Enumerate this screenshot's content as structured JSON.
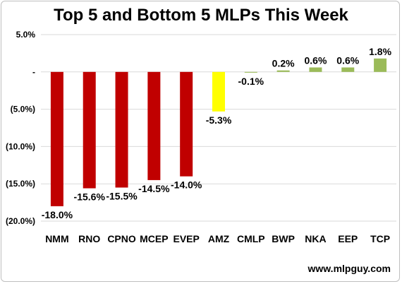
{
  "title": "Top 5 and Bottom 5 MLPs This Week",
  "source": "www.mlpguy.com",
  "chart_data": {
    "type": "bar",
    "title": "Top 5 and Bottom 5 MLPs This Week",
    "categories": [
      "NMM",
      "RNO",
      "CPNO",
      "MCEP",
      "EVEP",
      "AMZ",
      "CMLP",
      "BWP",
      "NKA",
      "EEP",
      "TCP"
    ],
    "values": [
      -18.0,
      -15.6,
      -15.5,
      -14.5,
      -14.0,
      -5.3,
      -0.1,
      0.2,
      0.6,
      0.6,
      1.8
    ],
    "data_labels": [
      "-18.0%",
      "-15.6%",
      "-15.5%",
      "-14.5%",
      "-14.0%",
      "-5.3%",
      "-0.1%",
      "0.2%",
      "0.6%",
      "0.6%",
      "1.8%"
    ],
    "bar_colors": [
      "#c00000",
      "#c00000",
      "#c00000",
      "#c00000",
      "#c00000",
      "#ffff00",
      "#9bbb59",
      "#9bbb59",
      "#9bbb59",
      "#9bbb59",
      "#9bbb59"
    ],
    "yticks": [
      5,
      0,
      -5,
      -10,
      -15,
      -20
    ],
    "ytick_labels": [
      "5.0%",
      "-",
      "(5.0%)",
      "(10.0%)",
      "(15.0%)",
      "(20.0%)"
    ],
    "ylim": [
      -20,
      5
    ],
    "grid": true,
    "legend": "none"
  }
}
